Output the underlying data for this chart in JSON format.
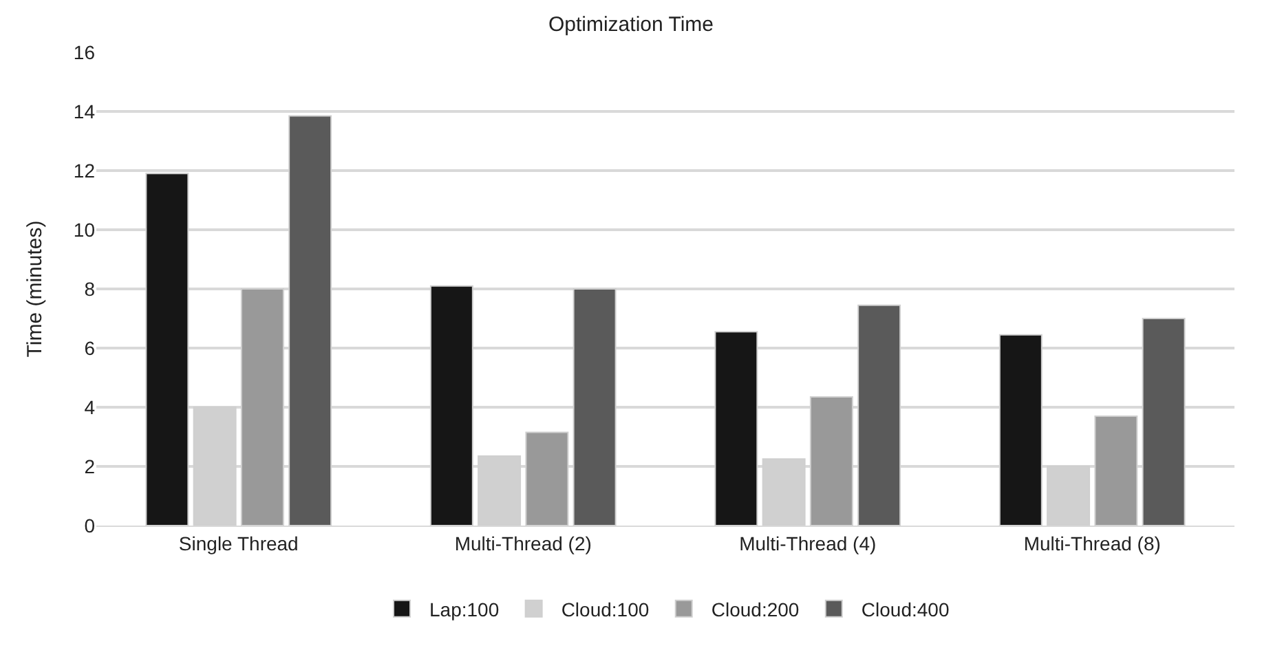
{
  "chart_data": {
    "type": "bar",
    "title": "Optimization Time",
    "ylabel": "Time (minutes)",
    "categories": [
      "Single Thread",
      "Multi-Thread (2)",
      "Multi-Thread (4)",
      "Multi-Thread (8)"
    ],
    "series": [
      {
        "name": "Lap:100",
        "color": "#161616",
        "values": [
          11.9,
          8.1,
          6.55,
          6.45
        ]
      },
      {
        "name": "Cloud:100",
        "color": "#d0d0d0",
        "values": [
          4.0,
          2.35,
          2.25,
          2.0
        ]
      },
      {
        "name": "Cloud:200",
        "color": "#999999",
        "values": [
          8.0,
          3.15,
          4.35,
          3.7
        ]
      },
      {
        "name": "Cloud:400",
        "color": "#5a5a5a",
        "values": [
          13.85,
          8.0,
          7.45,
          7.0
        ]
      }
    ],
    "ylim": [
      0,
      16
    ],
    "yticks": [
      0,
      2,
      4,
      6,
      8,
      10,
      12,
      14,
      16
    ],
    "grid": "y",
    "legend": "bottom"
  }
}
